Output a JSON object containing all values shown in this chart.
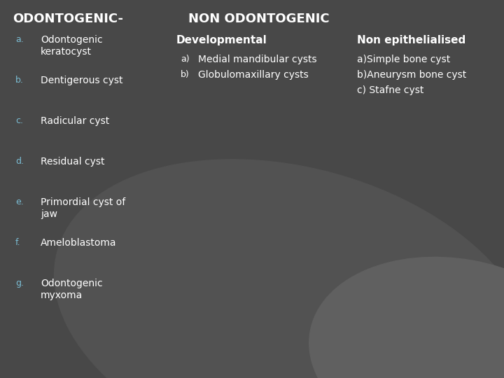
{
  "bg_color": "#484848",
  "ellipse1_color": "#525252",
  "ellipse2_color": "#606060",
  "title_left": "ODONTOGENIC-",
  "title_center": "NON ODONTOGENIC",
  "title_color": "#ffffff",
  "title_fontsize": 13,
  "left_items": [
    {
      "label": "a.",
      "text": "Odontogenic\nkeratocyst"
    },
    {
      "label": "b.",
      "text": "Dentigerous cyst"
    },
    {
      "label": "c.",
      "text": "Radicular cyst"
    },
    {
      "label": "d.",
      "text": "Residual cyst"
    },
    {
      "label": "e.",
      "text": "Primordial cyst of\njaw"
    },
    {
      "label": "f.",
      "text": "Ameloblastoma"
    },
    {
      "label": "g.",
      "text": "Odontogenic\nmyxoma"
    }
  ],
  "label_color": "#7bbdd4",
  "text_color": "#ffffff",
  "mid_header": "Developmental",
  "mid_items": [
    {
      "label": "a)",
      "text": "Medial mandibular cysts"
    },
    {
      "label": "b)",
      "text": "Globulomaxillary cysts"
    }
  ],
  "right_header": "Non epithelialised",
  "right_items": [
    {
      "text": "a)Simple bone cyst"
    },
    {
      "text": "b)Aneurysm bone cyst"
    },
    {
      "text": "c) Stafne cyst"
    }
  ],
  "fontsize_title": 13,
  "fontsize_header": 11,
  "fontsize_body": 10,
  "fontsize_label": 9
}
